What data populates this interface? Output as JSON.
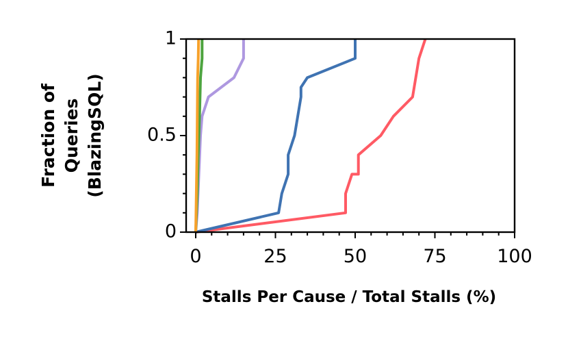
{
  "chart_data": {
    "type": "line",
    "title": "",
    "xlabel": "Stalls Per Cause / Total Stalls (%)",
    "ylabel_lines": [
      "Fraction of",
      "Queries",
      "(BlazingSQL)"
    ],
    "xlim": [
      -3,
      100
    ],
    "ylim": [
      0,
      1
    ],
    "x_ticks": [
      {
        "value": 0,
        "label": "0"
      },
      {
        "value": 25,
        "label": "25"
      },
      {
        "value": 50,
        "label": "50"
      },
      {
        "value": 75,
        "label": "75"
      },
      {
        "value": 100,
        "label": "100"
      }
    ],
    "y_ticks": [
      {
        "value": 0,
        "label": "0"
      },
      {
        "value": 0.5,
        "label": "0.5"
      },
      {
        "value": 1,
        "label": "1"
      }
    ],
    "grid": false,
    "legend": "none",
    "series": [
      {
        "color": "#ff5a64",
        "x": [
          0,
          47,
          47,
          49,
          51,
          51,
          58,
          62,
          68,
          70,
          72
        ],
        "y": [
          0,
          0.1,
          0.2,
          0.3,
          0.3,
          0.4,
          0.5,
          0.6,
          0.7,
          0.9,
          1.0
        ]
      },
      {
        "color": "#3f73b2",
        "x": [
          0,
          26,
          27,
          29,
          29,
          31,
          32,
          33,
          33,
          35,
          50,
          50
        ],
        "y": [
          0,
          0.1,
          0.2,
          0.3,
          0.4,
          0.5,
          0.6,
          0.7,
          0.75,
          0.8,
          0.9,
          1.0
        ]
      },
      {
        "color": "#ae98e0",
        "x": [
          0,
          0.5,
          1,
          1.5,
          2,
          4,
          12,
          15,
          15
        ],
        "y": [
          0,
          0.1,
          0.3,
          0.5,
          0.6,
          0.7,
          0.8,
          0.9,
          1.0
        ]
      },
      {
        "color": "#4ea43f",
        "x": [
          0,
          0.5,
          0.8,
          1.2,
          1.5,
          2,
          2
        ],
        "y": [
          0,
          0.2,
          0.4,
          0.6,
          0.8,
          0.9,
          1.0
        ]
      },
      {
        "color": "#f6a12a",
        "x": [
          0,
          0.2,
          0.4,
          0.5,
          0.6,
          0.8,
          0.9
        ],
        "y": [
          0,
          0.2,
          0.4,
          0.6,
          0.8,
          0.9,
          1.0
        ]
      }
    ]
  }
}
